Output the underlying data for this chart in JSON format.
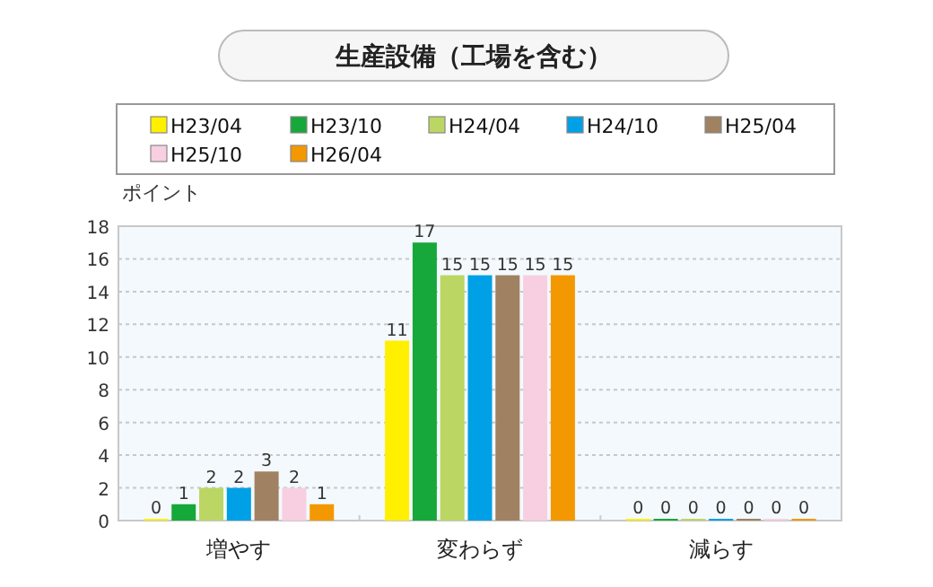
{
  "chart_data": {
    "type": "bar",
    "title": "生産設備（工場を含む）",
    "ylabel": "ポイント",
    "categories": [
      "増やす",
      "変わらず",
      "減らす"
    ],
    "series": [
      {
        "name": "H23/04",
        "color": "#fff000",
        "values": [
          0,
          11,
          0
        ]
      },
      {
        "name": "H23/10",
        "color": "#16a83a",
        "values": [
          1,
          17,
          0
        ]
      },
      {
        "name": "H24/04",
        "color": "#bcd664",
        "values": [
          2,
          15,
          0
        ]
      },
      {
        "name": "H24/10",
        "color": "#00a0e6",
        "values": [
          2,
          15,
          0
        ]
      },
      {
        "name": "H25/04",
        "color": "#a08262",
        "values": [
          3,
          15,
          0
        ]
      },
      {
        "name": "H25/10",
        "color": "#f7cfe0",
        "values": [
          2,
          15,
          0
        ]
      },
      {
        "name": "H26/04",
        "color": "#f39800",
        "values": [
          1,
          15,
          0
        ]
      }
    ],
    "ylim": [
      0,
      18
    ],
    "yticks": [
      0,
      2,
      4,
      6,
      8,
      10,
      12,
      14,
      16,
      18
    ],
    "grid": "y",
    "legend": "top",
    "data_labels": true
  }
}
